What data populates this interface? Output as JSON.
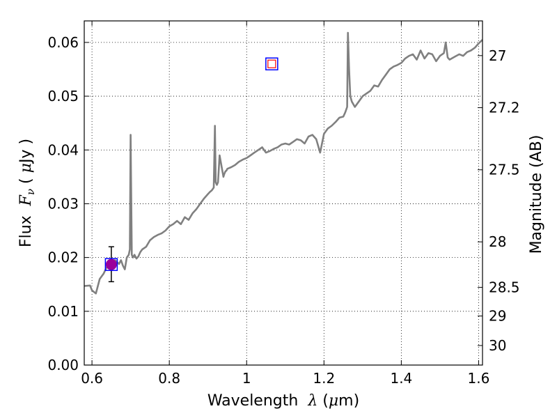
{
  "chart_data": {
    "type": "line",
    "title": "",
    "xlabel": {
      "text": "Wavelength",
      "symbol": "λ",
      "unit_open": " (",
      "unit": "μ",
      "unit_rest": "m)"
    },
    "ylabel": {
      "text": "Flux",
      "symbol": "F",
      "subscript": "ν",
      "unit_open": " ( ",
      "unit": "μ",
      "unit_rest": "Jy )"
    },
    "y2label": "Magnitude (AB)",
    "xlim": [
      0.58,
      1.61
    ],
    "ylim": [
      0.0,
      0.064
    ],
    "xticks": [
      {
        "value": 0.6,
        "label": "0.6"
      },
      {
        "value": 0.8,
        "label": "0.8"
      },
      {
        "value": 1.0,
        "label": "1"
      },
      {
        "value": 1.2,
        "label": "1.2"
      },
      {
        "value": 1.4,
        "label": "1.4"
      },
      {
        "value": 1.6,
        "label": "1.6"
      }
    ],
    "yticks": [
      {
        "value": 0.0,
        "label": "0.00"
      },
      {
        "value": 0.01,
        "label": "0.01"
      },
      {
        "value": 0.02,
        "label": "0.02"
      },
      {
        "value": 0.03,
        "label": "0.03"
      },
      {
        "value": 0.04,
        "label": "0.04"
      },
      {
        "value": 0.05,
        "label": "0.05"
      },
      {
        "value": 0.06,
        "label": "0.06"
      }
    ],
    "y2ticks": [
      {
        "value": 27.0,
        "label": "27"
      },
      {
        "value": 27.2,
        "label": "27.2"
      },
      {
        "value": 27.5,
        "label": "27.5"
      },
      {
        "value": 28.0,
        "label": "28"
      },
      {
        "value": 28.5,
        "label": "28.5"
      },
      {
        "value": 29.0,
        "label": "29"
      },
      {
        "value": 30.0,
        "label": "30"
      }
    ],
    "grid": true,
    "colors": {
      "spectrum": "#808080",
      "photometry_marker": "#0000ff",
      "model_marker": "#ff0000",
      "measurement": "#9b009b",
      "errorbar": "#000000"
    },
    "series": [
      {
        "type": "line",
        "x": [
          0.58,
          0.595,
          0.6,
          0.61,
          0.62,
          0.625,
          0.63,
          0.64,
          0.65,
          0.66,
          0.67,
          0.675,
          0.68,
          0.685,
          0.69,
          0.695,
          0.698,
          0.7,
          0.703,
          0.706,
          0.71,
          0.715,
          0.72,
          0.725,
          0.73,
          0.74,
          0.75,
          0.76,
          0.77,
          0.78,
          0.79,
          0.8,
          0.81,
          0.82,
          0.83,
          0.84,
          0.85,
          0.86,
          0.87,
          0.88,
          0.89,
          0.9,
          0.905,
          0.91,
          0.915,
          0.918,
          0.92,
          0.923,
          0.926,
          0.93,
          0.94,
          0.942,
          0.945,
          0.948,
          0.95,
          0.96,
          0.97,
          0.98,
          0.99,
          1.0,
          1.01,
          1.02,
          1.03,
          1.04,
          1.05,
          1.06,
          1.07,
          1.08,
          1.09,
          1.1,
          1.11,
          1.12,
          1.13,
          1.14,
          1.15,
          1.16,
          1.17,
          1.18,
          1.19,
          1.2,
          1.21,
          1.22,
          1.23,
          1.24,
          1.25,
          1.255,
          1.26,
          1.262,
          1.265,
          1.268,
          1.272,
          1.28,
          1.29,
          1.3,
          1.31,
          1.32,
          1.33,
          1.34,
          1.35,
          1.36,
          1.37,
          1.38,
          1.39,
          1.4,
          1.41,
          1.42,
          1.43,
          1.44,
          1.45,
          1.46,
          1.47,
          1.48,
          1.49,
          1.5,
          1.51,
          1.515,
          1.52,
          1.525,
          1.53,
          1.54,
          1.55,
          1.56,
          1.57,
          1.58,
          1.59,
          1.6,
          1.61
        ],
        "y": [
          0.0147,
          0.0148,
          0.0139,
          0.0133,
          0.016,
          0.0165,
          0.017,
          0.0185,
          0.0195,
          0.0195,
          0.0188,
          0.0195,
          0.0185,
          0.0178,
          0.02,
          0.0205,
          0.0215,
          0.0428,
          0.0205,
          0.02,
          0.0205,
          0.0198,
          0.0202,
          0.021,
          0.0215,
          0.022,
          0.0232,
          0.0238,
          0.0242,
          0.0245,
          0.025,
          0.0258,
          0.0262,
          0.0268,
          0.0262,
          0.0275,
          0.027,
          0.0282,
          0.029,
          0.03,
          0.031,
          0.0318,
          0.0322,
          0.0325,
          0.033,
          0.0445,
          0.034,
          0.0335,
          0.034,
          0.039,
          0.035,
          0.0355,
          0.036,
          0.0362,
          0.0365,
          0.0368,
          0.0372,
          0.0378,
          0.0382,
          0.0385,
          0.039,
          0.0395,
          0.04,
          0.0405,
          0.0395,
          0.0398,
          0.0402,
          0.0405,
          0.041,
          0.0412,
          0.041,
          0.0415,
          0.042,
          0.0418,
          0.0412,
          0.0425,
          0.0428,
          0.042,
          0.0395,
          0.043,
          0.044,
          0.0445,
          0.0452,
          0.046,
          0.0462,
          0.047,
          0.048,
          0.0618,
          0.055,
          0.05,
          0.049,
          0.048,
          0.049,
          0.05,
          0.0505,
          0.051,
          0.052,
          0.0518,
          0.053,
          0.054,
          0.055,
          0.0555,
          0.0558,
          0.0562,
          0.057,
          0.0575,
          0.0578,
          0.0568,
          0.0585,
          0.057,
          0.058,
          0.0578,
          0.0565,
          0.0575,
          0.058,
          0.06,
          0.0572,
          0.0568,
          0.057,
          0.0574,
          0.0578,
          0.0575,
          0.0582,
          0.0585,
          0.059,
          0.0598,
          0.0605
        ]
      },
      {
        "type": "photometry",
        "x": 0.65,
        "y": 0.0187,
        "yerr_low": 0.0155,
        "yerr_high": 0.022
      },
      {
        "type": "model-point",
        "x": 1.065,
        "y": 0.056
      }
    ]
  }
}
